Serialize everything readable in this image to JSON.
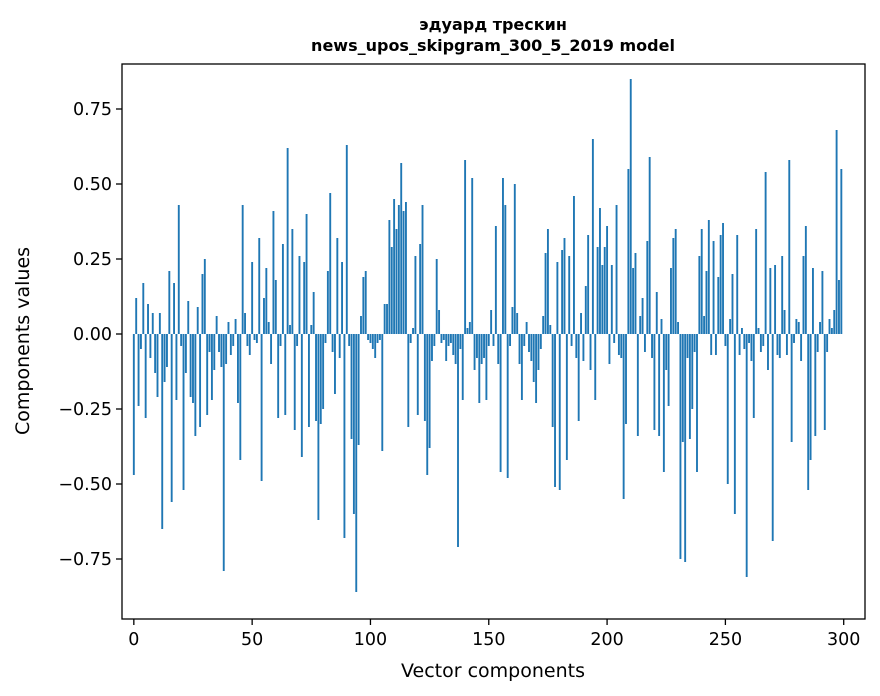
{
  "chart_data": {
    "type": "bar",
    "title": "эдуард трескин",
    "subtitle": "news_upos_skipgram_300_5_2019 model",
    "xlabel": "Vector components",
    "ylabel": "Components values",
    "xlim": [
      -5,
      309
    ],
    "ylim": [
      -0.95,
      0.9
    ],
    "xticks": [
      0,
      50,
      100,
      150,
      200,
      250,
      300
    ],
    "xtick_labels": [
      "0",
      "50",
      "100",
      "150",
      "200",
      "250",
      "300"
    ],
    "yticks": [
      0.75,
      0.5,
      0.25,
      0.0,
      -0.25,
      -0.5,
      -0.75
    ],
    "ytick_labels": [
      "0.75",
      "0.50",
      "0.25",
      "0.00",
      "−0.25",
      "−0.50",
      "−0.75"
    ],
    "color": "#1f77b4",
    "grid": false,
    "x": [
      0,
      1,
      2,
      3,
      4,
      5,
      6,
      7,
      8,
      9,
      10,
      11,
      12,
      13,
      14,
      15,
      16,
      17,
      18,
      19,
      20,
      21,
      22,
      23,
      24,
      25,
      26,
      27,
      28,
      29,
      30,
      31,
      32,
      33,
      34,
      35,
      36,
      37,
      38,
      39,
      40,
      41,
      42,
      43,
      44,
      45,
      46,
      47,
      48,
      49,
      50,
      51,
      52,
      53,
      54,
      55,
      56,
      57,
      58,
      59,
      60,
      61,
      62,
      63,
      64,
      65,
      66,
      67,
      68,
      69,
      70,
      71,
      72,
      73,
      74,
      75,
      76,
      77,
      78,
      79,
      80,
      81,
      82,
      83,
      84,
      85,
      86,
      87,
      88,
      89,
      90,
      91,
      92,
      93,
      94,
      95,
      96,
      97,
      98,
      99,
      100,
      101,
      102,
      103,
      104,
      105,
      106,
      107,
      108,
      109,
      110,
      111,
      112,
      113,
      114,
      115,
      116,
      117,
      118,
      119,
      120,
      121,
      122,
      123,
      124,
      125,
      126,
      127,
      128,
      129,
      130,
      131,
      132,
      133,
      134,
      135,
      136,
      137,
      138,
      139,
      140,
      141,
      142,
      143,
      144,
      145,
      146,
      147,
      148,
      149,
      150,
      151,
      152,
      153,
      154,
      155,
      156,
      157,
      158,
      159,
      160,
      161,
      162,
      163,
      164,
      165,
      166,
      167,
      168,
      169,
      170,
      171,
      172,
      173,
      174,
      175,
      176,
      177,
      178,
      179,
      180,
      181,
      182,
      183,
      184,
      185,
      186,
      187,
      188,
      189,
      190,
      191,
      192,
      193,
      194,
      195,
      196,
      197,
      198,
      199,
      200,
      201,
      202,
      203,
      204,
      205,
      206,
      207,
      208,
      209,
      210,
      211,
      212,
      213,
      214,
      215,
      216,
      217,
      218,
      219,
      220,
      221,
      222,
      223,
      224,
      225,
      226,
      227,
      228,
      229,
      230,
      231,
      232,
      233,
      234,
      235,
      236,
      237,
      238,
      239,
      240,
      241,
      242,
      243,
      244,
      245,
      246,
      247,
      248,
      249,
      250,
      251,
      252,
      253,
      254,
      255,
      256,
      257,
      258,
      259,
      260,
      261,
      262,
      263,
      264,
      265,
      266,
      267,
      268,
      269,
      270,
      271,
      272,
      273,
      274,
      275,
      276,
      277,
      278,
      279,
      280,
      281,
      282,
      283,
      284,
      285,
      286,
      287,
      288,
      289,
      290,
      291,
      292,
      293,
      294,
      295,
      296,
      297,
      298,
      299
    ],
    "values": [
      -0.47,
      0.12,
      -0.24,
      -0.05,
      0.17,
      -0.28,
      0.1,
      -0.08,
      0.07,
      -0.13,
      -0.21,
      0.07,
      -0.65,
      -0.16,
      -0.11,
      0.21,
      -0.56,
      0.17,
      -0.22,
      0.43,
      -0.04,
      -0.52,
      -0.13,
      0.11,
      -0.21,
      -0.23,
      -0.34,
      0.09,
      -0.31,
      0.2,
      0.25,
      -0.27,
      -0.06,
      -0.22,
      -0.12,
      0.06,
      -0.06,
      -0.11,
      -0.79,
      -0.1,
      0.04,
      -0.07,
      -0.04,
      0.05,
      -0.23,
      -0.42,
      0.43,
      0.07,
      -0.04,
      -0.07,
      0.24,
      -0.02,
      -0.03,
      0.32,
      -0.49,
      0.12,
      0.22,
      0.04,
      -0.1,
      0.41,
      0.18,
      -0.28,
      -0.04,
      0.3,
      -0.27,
      0.62,
      0.03,
      0.35,
      -0.32,
      -0.04,
      0.26,
      -0.41,
      0.24,
      0.4,
      -0.31,
      0.03,
      0.14,
      -0.29,
      -0.62,
      -0.3,
      -0.25,
      -0.03,
      0.21,
      0.47,
      -0.06,
      -0.2,
      0.32,
      -0.08,
      0.24,
      -0.68,
      0.63,
      -0.04,
      -0.35,
      -0.6,
      -0.86,
      -0.37,
      0.06,
      0.19,
      0.21,
      -0.02,
      -0.03,
      -0.05,
      -0.08,
      -0.03,
      -0.02,
      -0.39,
      0.1,
      0.1,
      0.38,
      0.29,
      0.45,
      0.35,
      0.43,
      0.57,
      0.41,
      0.44,
      -0.31,
      -0.03,
      0.02,
      0.26,
      -0.27,
      0.3,
      0.43,
      -0.29,
      -0.47,
      -0.38,
      -0.09,
      -0.04,
      0.25,
      0.08,
      -0.03,
      -0.02,
      -0.09,
      -0.04,
      -0.03,
      -0.07,
      -0.1,
      -0.71,
      -0.05,
      -0.22,
      0.58,
      0.02,
      0.04,
      0.52,
      -0.12,
      -0.08,
      -0.23,
      -0.1,
      -0.08,
      -0.22,
      -0.04,
      0.08,
      -0.04,
      0.36,
      -0.1,
      -0.46,
      0.52,
      0.43,
      -0.48,
      -0.04,
      0.09,
      0.5,
      0.07,
      -0.1,
      -0.22,
      -0.04,
      0.04,
      -0.06,
      -0.09,
      -0.16,
      -0.23,
      -0.12,
      -0.05,
      0.06,
      0.27,
      0.35,
      0.03,
      -0.31,
      -0.51,
      0.24,
      -0.52,
      0.28,
      0.32,
      -0.42,
      0.26,
      -0.04,
      0.46,
      -0.08,
      -0.29,
      0.07,
      -0.09,
      0.16,
      0.33,
      -0.12,
      0.65,
      -0.22,
      0.29,
      0.42,
      0.23,
      0.29,
      0.36,
      -0.1,
      0.23,
      -0.03,
      0.43,
      -0.07,
      -0.08,
      -0.55,
      -0.3,
      0.55,
      0.85,
      0.22,
      0.27,
      -0.34,
      0.06,
      0.12,
      -0.06,
      0.31,
      0.59,
      -0.08,
      -0.32,
      0.14,
      -0.34,
      0.05,
      -0.46,
      -0.12,
      -0.24,
      0.22,
      0.32,
      0.35,
      0.04,
      -0.75,
      -0.36,
      -0.76,
      -0.08,
      -0.35,
      -0.25,
      -0.06,
      -0.46,
      0.26,
      0.35,
      0.06,
      0.21,
      0.38,
      -0.07,
      0.31,
      -0.07,
      0.19,
      0.33,
      0.37,
      -0.04,
      -0.5,
      0.05,
      0.2,
      -0.6,
      0.33,
      -0.07,
      0.02,
      -0.05,
      -0.81,
      -0.03,
      -0.09,
      -0.28,
      0.35,
      0.02,
      -0.06,
      -0.04,
      0.54,
      -0.12,
      0.22,
      -0.69,
      0.23,
      -0.07,
      -0.08,
      0.26,
      0.08,
      -0.07,
      0.58,
      -0.36,
      -0.03,
      0.05,
      0.04,
      -0.09,
      0.26,
      0.36,
      -0.52,
      -0.42,
      0.22,
      -0.34,
      -0.06,
      0.04,
      0.21,
      -0.32,
      -0.06,
      0.05,
      0.02,
      0.08,
      0.68,
      0.18,
      0.55
    ]
  }
}
